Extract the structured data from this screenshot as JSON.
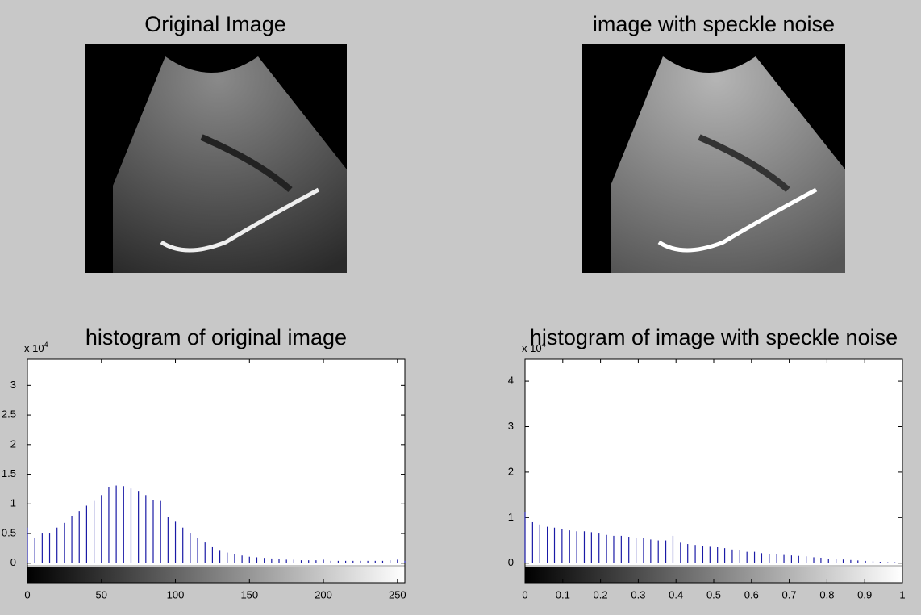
{
  "images": [
    {
      "title": "Original  Image"
    },
    {
      "title": "image with speckle noise"
    }
  ],
  "chart_data": [
    {
      "type": "stem",
      "title": "histogram of original  image",
      "color": "#1a1aa6",
      "y_multiplier": {
        "base": "x 10",
        "exponent": "4"
      },
      "x": [
        0,
        5,
        10,
        15,
        20,
        25,
        30,
        35,
        40,
        45,
        50,
        55,
        60,
        65,
        70,
        75,
        80,
        85,
        90,
        95,
        100,
        105,
        110,
        115,
        120,
        125,
        130,
        135,
        140,
        145,
        150,
        155,
        160,
        165,
        170,
        175,
        180,
        185,
        190,
        195,
        200,
        205,
        210,
        215,
        220,
        225,
        230,
        235,
        240,
        245,
        250,
        255
      ],
      "values": [
        0.6,
        0.42,
        0.5,
        0.5,
        0.6,
        0.68,
        0.8,
        0.88,
        0.97,
        1.05,
        1.15,
        1.28,
        1.31,
        1.3,
        1.26,
        1.22,
        1.15,
        1.07,
        1.05,
        0.78,
        0.7,
        0.6,
        0.5,
        0.42,
        0.35,
        0.27,
        0.21,
        0.18,
        0.15,
        0.13,
        0.11,
        0.1,
        0.09,
        0.08,
        0.07,
        0.06,
        0.06,
        0.05,
        0.05,
        0.05,
        0.06,
        0.04,
        0.04,
        0.04,
        0.04,
        0.04,
        0.04,
        0.04,
        0.04,
        0.05,
        0.06,
        0.04
      ],
      "xlim": [
        0,
        255
      ],
      "ylim": [
        -0.03,
        3.44
      ],
      "xticks": [
        0,
        50,
        100,
        150,
        200,
        250
      ],
      "yticks": [
        0,
        0.5,
        1,
        1.5,
        2,
        2.5,
        3
      ]
    },
    {
      "type": "stem",
      "title": "histogram of image with speckle noise",
      "color": "#1a1aa6",
      "y_multiplier": {
        "base": "x 10",
        "exponent": "4"
      },
      "x": [
        0,
        0.02,
        0.039,
        0.059,
        0.078,
        0.098,
        0.118,
        0.137,
        0.157,
        0.176,
        0.196,
        0.216,
        0.235,
        0.255,
        0.275,
        0.294,
        0.314,
        0.333,
        0.353,
        0.373,
        0.392,
        0.412,
        0.431,
        0.451,
        0.471,
        0.49,
        0.51,
        0.529,
        0.549,
        0.569,
        0.588,
        0.608,
        0.627,
        0.647,
        0.667,
        0.686,
        0.706,
        0.725,
        0.745,
        0.765,
        0.784,
        0.804,
        0.824,
        0.843,
        0.863,
        0.882,
        0.902,
        0.922,
        0.941,
        0.961,
        0.98,
        1
      ],
      "values": [
        1.12,
        0.9,
        0.85,
        0.8,
        0.78,
        0.74,
        0.72,
        0.7,
        0.7,
        0.68,
        0.65,
        0.62,
        0.6,
        0.6,
        0.58,
        0.56,
        0.55,
        0.52,
        0.5,
        0.5,
        0.6,
        0.45,
        0.42,
        0.4,
        0.38,
        0.36,
        0.35,
        0.33,
        0.3,
        0.28,
        0.25,
        0.25,
        0.22,
        0.2,
        0.2,
        0.18,
        0.17,
        0.16,
        0.15,
        0.13,
        0.12,
        0.1,
        0.1,
        0.08,
        0.07,
        0.06,
        0.05,
        0.04,
        0.03,
        0.02,
        0.02,
        0.01
      ],
      "xlim": [
        0,
        1
      ],
      "ylim": [
        -0.04,
        4.48
      ],
      "xticks": [
        0,
        0.1,
        0.2,
        0.3,
        0.4,
        0.5,
        0.6,
        0.7,
        0.8,
        0.9,
        1
      ],
      "yticks": [
        0,
        1,
        2,
        3,
        4
      ]
    }
  ]
}
